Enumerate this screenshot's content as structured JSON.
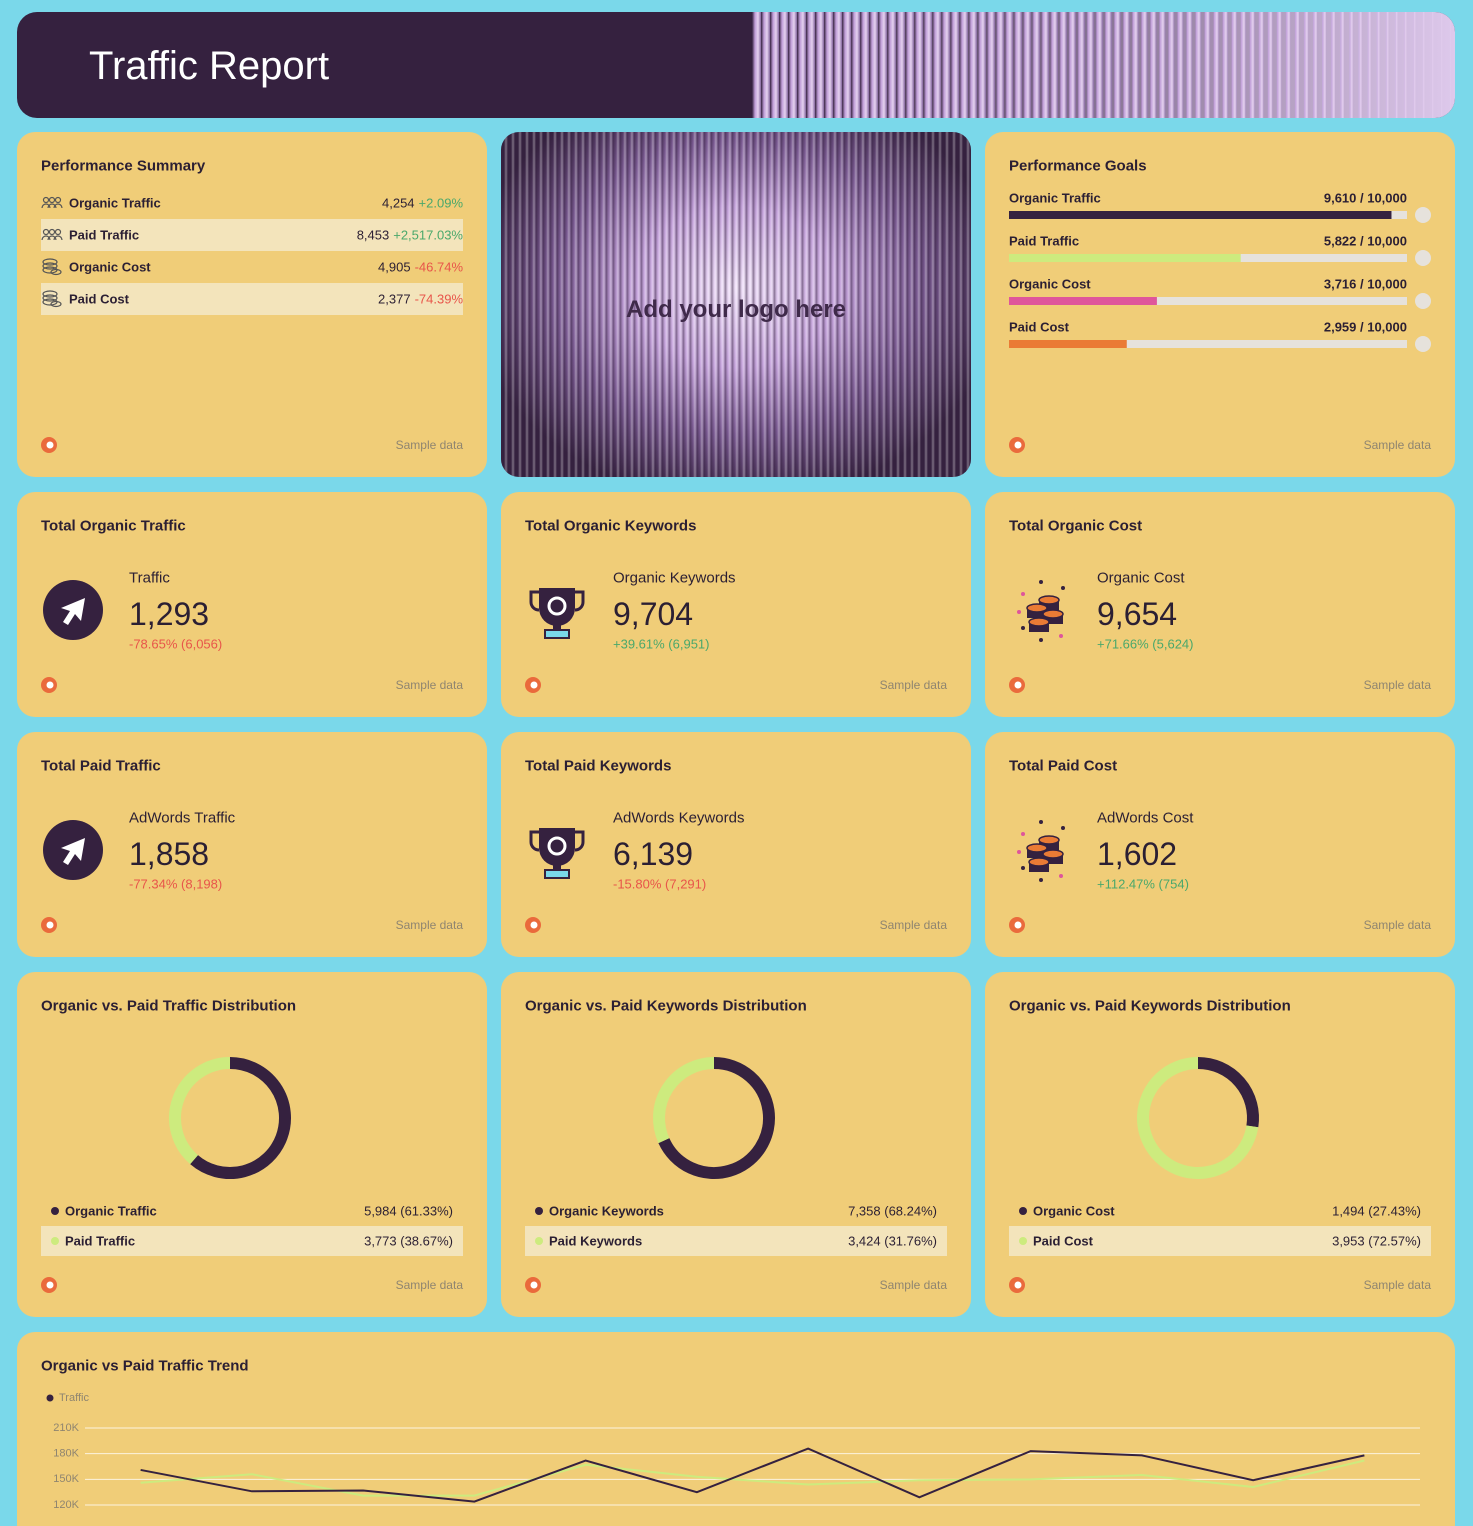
{
  "header": {
    "title": "Traffic Report"
  },
  "summary": {
    "title": "Performance Summary",
    "rows": [
      {
        "label": "Organic Traffic",
        "value": "4,254",
        "change": "+2.09%"
      },
      {
        "label": "Paid Traffic",
        "value": "8,453",
        "change": "+2,517.03%"
      },
      {
        "label": "Organic Cost",
        "value": "4,905",
        "change": "-46.74%"
      },
      {
        "label": "Paid Cost",
        "value": "2,377",
        "change": "-74.39%"
      }
    ],
    "footer": "Sample data"
  },
  "logo": {
    "text": "Add your logo here"
  },
  "goals": {
    "title": "Performance Goals",
    "items": [
      {
        "label": "Organic Traffic",
        "value": 9610,
        "target": 10000,
        "text": "9,610 / 10,000",
        "color": "#35213f"
      },
      {
        "label": "Paid Traffic",
        "value": 5822,
        "target": 10000,
        "text": "5,822 / 10,000",
        "color": "#cdeb7e"
      },
      {
        "label": "Organic Cost",
        "value": 3716,
        "target": 10000,
        "text": "3,716 / 10,000",
        "color": "#df569b"
      },
      {
        "label": "Paid Cost",
        "value": 2959,
        "target": 10000,
        "text": "2,959 / 10,000",
        "color": "#ea7b35"
      }
    ],
    "footer": "Sample data"
  },
  "kpis": [
    {
      "title": "Total Organic Traffic",
      "metric": "Traffic",
      "value": "1,293",
      "change": "-78.65% (6,056)",
      "footer": "Sample data"
    },
    {
      "title": "Total Organic Keywords",
      "metric": "Organic Keywords",
      "value": "9,704",
      "change": "+39.61% (6,951)",
      "footer": "Sample data"
    },
    {
      "title": "Total Organic Cost",
      "metric": "Organic Cost",
      "value": "9,654",
      "change": "+71.66% (5,624)",
      "footer": "Sample data"
    },
    {
      "title": "Total Paid Traffic",
      "metric": "AdWords Traffic",
      "value": "1,858",
      "change": "-77.34% (8,198)",
      "footer": "Sample data"
    },
    {
      "title": "Total Paid Keywords",
      "metric": "AdWords Keywords",
      "value": "6,139",
      "change": "-15.80% (7,291)",
      "footer": "Sample data"
    },
    {
      "title": "Total Paid Cost",
      "metric": "AdWords Cost",
      "value": "1,602",
      "change": "+112.47% (754)",
      "footer": "Sample data"
    }
  ],
  "chart_data": [
    {
      "type": "donut",
      "title": "Organic vs. Paid Traffic Distribution",
      "categories": [
        "Organic Traffic",
        "Paid Traffic"
      ],
      "values": [
        5984,
        3773
      ],
      "value_labels": [
        "5,984 (61.33%)",
        "3,773 (38.67%)"
      ],
      "colors": [
        "#35213f",
        "#cdeb7e"
      ],
      "footer": "Sample data"
    },
    {
      "type": "donut",
      "title": "Organic vs. Paid Keywords Distribution",
      "categories": [
        "Organic Keywords",
        "Paid Keywords"
      ],
      "values": [
        7358,
        3424
      ],
      "value_labels": [
        "7,358 (68.24%)",
        "3,424 (31.76%)"
      ],
      "colors": [
        "#35213f",
        "#cdeb7e"
      ],
      "footer": "Sample data"
    },
    {
      "type": "donut",
      "title": "Organic vs. Paid Keywords Distribution",
      "categories": [
        "Organic Cost",
        "Paid Cost"
      ],
      "values": [
        1494,
        3953
      ],
      "value_labels": [
        "1,494 (27.43%)",
        "3,953 (72.57%)"
      ],
      "colors": [
        "#35213f",
        "#cdeb7e"
      ],
      "footer": "Sample data"
    },
    {
      "type": "line",
      "title": "Organic vs Paid Traffic Trend",
      "categories": [
        null,
        null,
        null,
        null,
        null,
        null,
        null,
        null,
        null,
        null,
        null,
        null
      ],
      "series": [
        {
          "name": "Traffic",
          "color": "#35213f",
          "values": [
            161000,
            136000,
            137000,
            124000,
            172000,
            135000,
            186000,
            129000,
            183000,
            178000,
            149000,
            178000
          ]
        },
        {
          "color": "#cdeb7e",
          "values": [
            146000,
            156000,
            131000,
            131000,
            167000,
            153000,
            144000,
            149000,
            150000,
            155000,
            141000,
            172000
          ]
        }
      ],
      "ylim": [
        120000,
        210000
      ],
      "yticks": [
        {
          "value": 120000,
          "label": "120K"
        },
        {
          "value": 150000,
          "label": "150K"
        },
        {
          "value": 180000,
          "label": "180K"
        },
        {
          "value": 210000,
          "label": "210K"
        }
      ],
      "grid": true
    }
  ]
}
